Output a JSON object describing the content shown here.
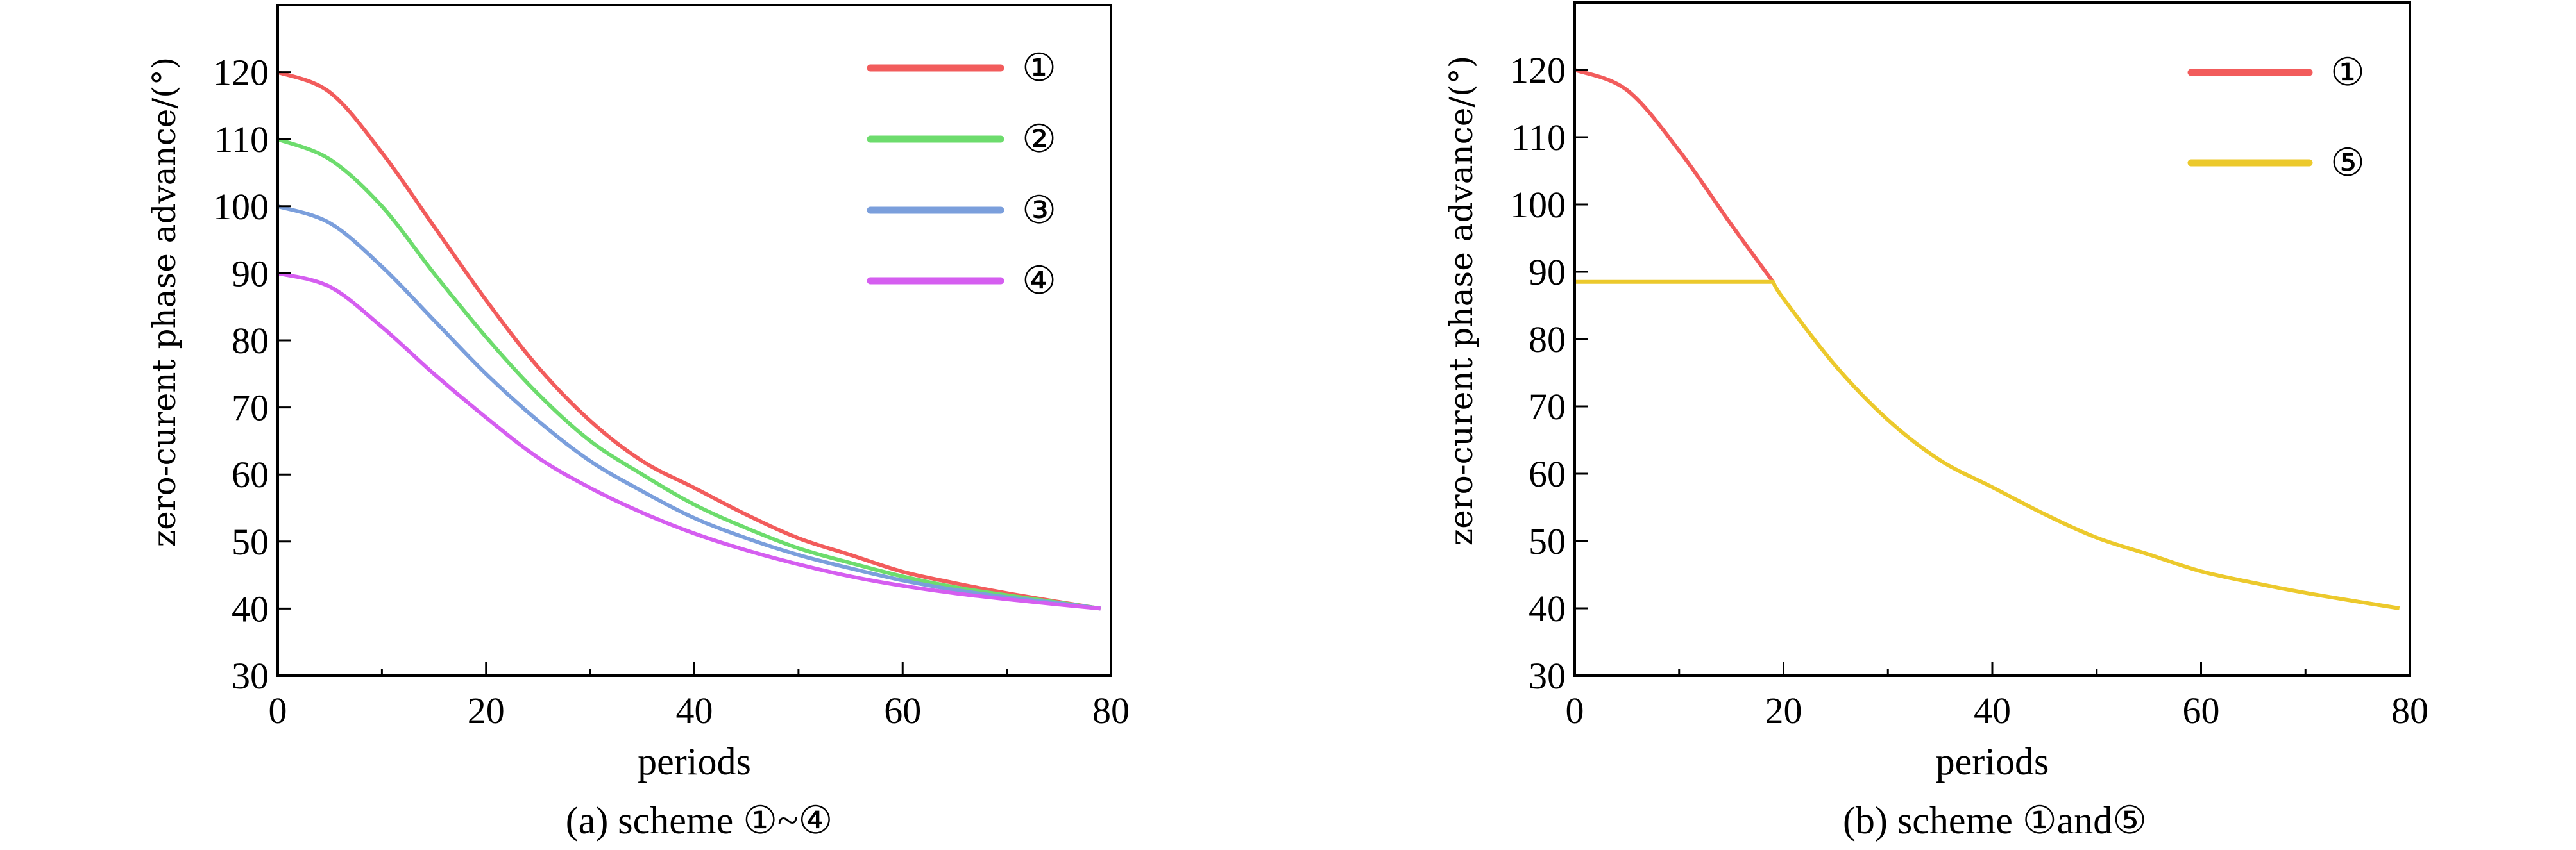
{
  "chart_data": [
    {
      "type": "line",
      "caption": "(a) scheme ①~④",
      "xlabel": "periods",
      "ylabel": "zero-curent phase advance/(°)",
      "xlim": [
        0,
        80
      ],
      "ylim": [
        30,
        130
      ],
      "xticks": [
        0,
        20,
        40,
        60,
        80
      ],
      "yticks": [
        30,
        40,
        50,
        60,
        70,
        80,
        90,
        100,
        110,
        120
      ],
      "legend_position": "top-right",
      "x": [
        0,
        5,
        10,
        15,
        20,
        25,
        30,
        35,
        40,
        45,
        50,
        55,
        60,
        65,
        70,
        75,
        79
      ],
      "series": [
        {
          "name": "①",
          "color": "#f25c5c",
          "values": [
            120,
            117,
            108,
            97,
            86,
            76,
            68,
            62,
            58,
            54,
            50.5,
            48,
            45.5,
            43.8,
            42.3,
            41,
            40
          ]
        },
        {
          "name": "②",
          "color": "#6ddc6d",
          "values": [
            110,
            107,
            100,
            90,
            80.5,
            72,
            65,
            60,
            55.5,
            52,
            49,
            46.8,
            44.8,
            43.2,
            42,
            40.9,
            40
          ]
        },
        {
          "name": "③",
          "color": "#7b9fdc",
          "values": [
            100,
            97.5,
            91,
            83,
            75,
            68,
            62,
            57.5,
            53.5,
            50.5,
            48,
            46,
            44.2,
            42.8,
            41.7,
            40.8,
            40
          ]
        },
        {
          "name": "④",
          "color": "#d55ef0",
          "values": [
            90,
            88,
            82,
            75,
            68.5,
            62.5,
            58,
            54.3,
            51.2,
            48.7,
            46.6,
            44.8,
            43.4,
            42.3,
            41.4,
            40.6,
            40
          ]
        }
      ]
    },
    {
      "type": "line",
      "caption": "(b) scheme ①and⑤",
      "xlabel": "periods",
      "ylabel": "zero-curent phase advance/(°)",
      "xlim": [
        0,
        80
      ],
      "ylim": [
        30,
        130
      ],
      "xticks": [
        0,
        20,
        40,
        60,
        80
      ],
      "yticks": [
        30,
        40,
        50,
        60,
        70,
        80,
        90,
        100,
        110,
        120
      ],
      "legend_position": "top-right",
      "series": [
        {
          "name": "①",
          "color": "#f25c5c",
          "x": [
            0,
            5,
            10,
            15,
            19
          ],
          "values": [
            120,
            117,
            108,
            97,
            88.5
          ]
        },
        {
          "name": "⑤",
          "color": "#ecc92c",
          "x": [
            0,
            19,
            20,
            25,
            30,
            35,
            40,
            45,
            50,
            55,
            60,
            65,
            70,
            75,
            79
          ],
          "values": [
            88.5,
            88.5,
            86,
            76,
            68,
            62,
            58,
            54,
            50.5,
            48,
            45.5,
            43.8,
            42.3,
            41,
            40
          ]
        }
      ]
    }
  ]
}
